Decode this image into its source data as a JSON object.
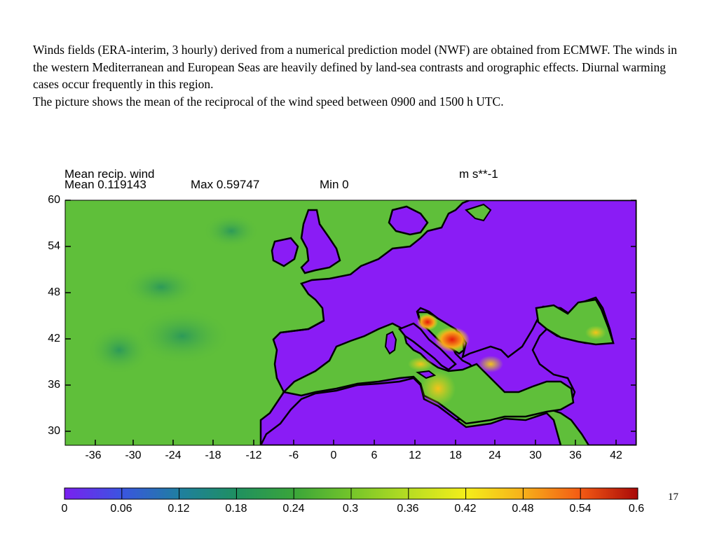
{
  "paragraph": {
    "line1": "Winds fields (ERA-interim, 3 hourly) derived from a numerical prediction model (NWF) are obtained from ECMWF. The winds in the western Mediterranean and European Seas are heavily  defined by land-sea contrasts and orographic effects. Diurnal warming cases occur frequently in this region.",
    "line2": "The picture  shows the mean of the reciprocal of the wind speed between 0900 and 1500 h UTC."
  },
  "map": {
    "title": "Mean recip. wind",
    "units": "m s**-1",
    "mean_text": "Mean 0.119143",
    "max_text": "Max 0.59747",
    "min_text": "Min 0",
    "x_ticks": [
      "-36",
      "-30",
      "-24",
      "-18",
      "-12",
      "-6",
      "0",
      "6",
      "12",
      "18",
      "24",
      "30",
      "36",
      "42"
    ],
    "y_ticks": [
      "60",
      "54",
      "48",
      "42",
      "36",
      "30"
    ],
    "land_color": "#8a1cf5",
    "sea_color": "#5fbf3a"
  },
  "colorbar": {
    "labels": [
      "0",
      "0.06",
      "0.12",
      "0.18",
      "0.24",
      "0.3",
      "0.36",
      "0.42",
      "0.48",
      "0.54",
      "0.6"
    ],
    "colors": [
      "#7a20f0",
      "#3a55e0",
      "#1f7fa0",
      "#1f9060",
      "#3aa53a",
      "#74c52a",
      "#b7dd22",
      "#f4ee1a",
      "#f7b01a",
      "#f35a14",
      "#a80808"
    ]
  },
  "page_number": "17"
}
